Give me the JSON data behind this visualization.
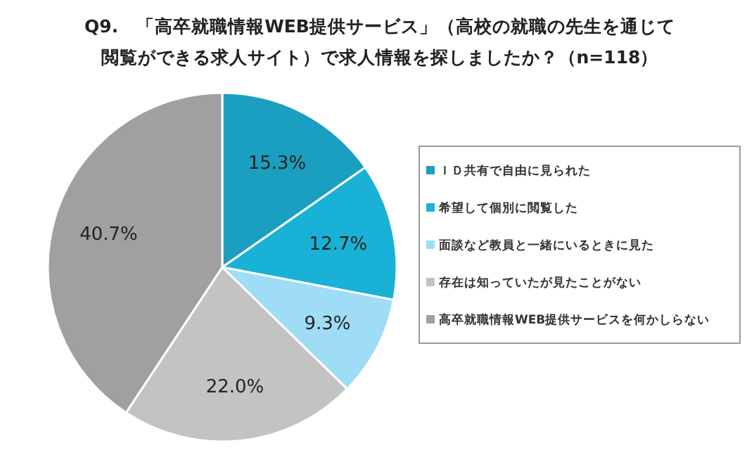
{
  "chart_data": {
    "type": "pie",
    "title": "Q9.　「高卒就職情報WEB提供サービス」（高校の就職の先生を通じて閲覧ができる求人サイト）で求人情報を探しましたか？（n=118）",
    "categories": [
      "ＩＤ共有で自由に見られた",
      "希望して個別に閲覧した",
      "面談など教員と一緒にいるときに見た",
      "存在は知っていたが見たことがない",
      "高卒就職情報WEB提供サービスを何かしらない"
    ],
    "values": [
      15.3,
      12.7,
      9.3,
      22.0,
      40.7
    ],
    "colors": [
      "#1a9fc0",
      "#19b2d6",
      "#9fdcf5",
      "#c3c3c3",
      "#a0a0a0"
    ],
    "value_labels": [
      "15.3%",
      "12.7%",
      "9.3%",
      "22.0%",
      "40.7%"
    ],
    "legend": "right"
  }
}
